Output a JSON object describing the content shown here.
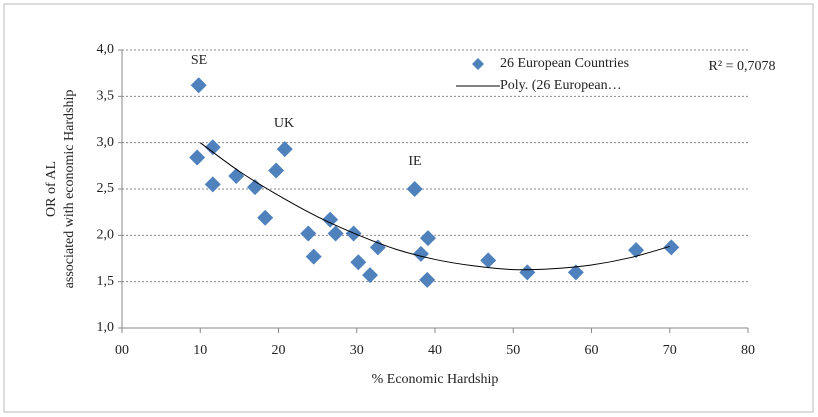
{
  "chart_data": {
    "type": "scatter",
    "x_label": "% Economic Hardship",
    "y_label": [
      "OR of AL",
      "associated with economic Hardship"
    ],
    "xlim": [
      0,
      80
    ],
    "xticks": [
      {
        "value": 0,
        "label": "00"
      },
      10,
      20,
      30,
      40,
      50,
      60,
      70,
      80
    ],
    "ylim": [
      1,
      4
    ],
    "yticks": [
      {
        "value": 1,
        "label": "1,0"
      },
      {
        "value": 1.5,
        "label": "1,5"
      },
      {
        "value": 2,
        "label": "2,0"
      },
      {
        "value": 2.5,
        "label": "2,5"
      },
      {
        "value": 3,
        "label": "3,0"
      },
      {
        "value": 3.5,
        "label": "3,5"
      },
      {
        "value": 4,
        "label": "4,0"
      }
    ],
    "grid": true,
    "legend": "top-right",
    "annotations": [
      "SE",
      "UK",
      "IE",
      "R² = 0,7078"
    ],
    "series": [
      {
        "name": "26 European Countries",
        "type": "scatter",
        "color": "#4f81bd",
        "x": [
          9.8,
          9.6,
          11.6,
          11.6,
          14.6,
          17.0,
          18.3,
          19.7,
          20.8,
          23.8,
          24.5,
          26.6,
          27.3,
          29.6,
          30.2,
          31.7,
          32.7,
          37.4,
          38.2,
          39.1,
          39.0,
          46.8,
          51.8,
          58.0,
          65.7,
          70.2
        ],
        "values": [
          3.62,
          2.84,
          2.95,
          2.55,
          2.64,
          2.52,
          2.19,
          2.7,
          2.93,
          2.02,
          1.77,
          2.17,
          2.02,
          2.02,
          1.71,
          1.57,
          1.87,
          2.5,
          1.8,
          1.97,
          1.52,
          1.73,
          1.6,
          1.6,
          1.84,
          1.87
        ]
      },
      {
        "name": "Poly. (26 European…",
        "type": "line",
        "color": "#000000",
        "x": [
          10,
          15,
          20,
          25,
          30,
          35,
          40,
          45,
          50,
          55,
          60,
          65,
          70
        ],
        "values": [
          3.0,
          2.69,
          2.43,
          2.2,
          2.01,
          1.85,
          1.74,
          1.67,
          1.63,
          1.64,
          1.68,
          1.76,
          1.88
        ]
      }
    ]
  }
}
